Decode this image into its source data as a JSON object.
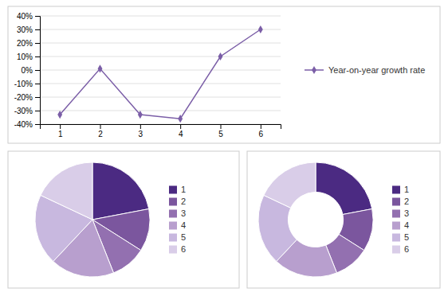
{
  "chart_data": [
    {
      "type": "line",
      "x": [
        1,
        2,
        3,
        4,
        5,
        6
      ],
      "series": [
        {
          "name": "Year-on-year growth rate",
          "color": "#7B5EA7",
          "marker": "diamond",
          "values": [
            -0.33,
            0.01,
            -0.33,
            -0.36,
            0.1,
            0.3
          ]
        }
      ],
      "xlim": [
        0.5,
        6.5
      ],
      "xticks": [
        1,
        2,
        3,
        4,
        5,
        6
      ],
      "ylim": [
        -0.4,
        0.4
      ],
      "yticks": [
        {
          "value": -0.4,
          "label": "-40%"
        },
        {
          "value": -0.3,
          "label": "-30%"
        },
        {
          "value": -0.2,
          "label": "-20%"
        },
        {
          "value": -0.1,
          "label": "-10%"
        },
        {
          "value": 0.0,
          "label": "0%"
        },
        {
          "value": 0.1,
          "label": "10%"
        },
        {
          "value": 0.2,
          "label": "20%"
        },
        {
          "value": 0.3,
          "label": "30%"
        },
        {
          "value": 0.4,
          "label": "40%"
        }
      ],
      "grid": true,
      "legend": "right"
    },
    {
      "type": "pie",
      "categories": [
        "1",
        "2",
        "3",
        "4",
        "5",
        "6"
      ],
      "values": [
        22,
        12,
        10,
        18,
        20,
        18
      ],
      "colors": [
        "#4B2A82",
        "#7B569E",
        "#9370B0",
        "#B89FCE",
        "#C8B8DF",
        "#D9CDE8"
      ],
      "legend": "right"
    },
    {
      "type": "donut",
      "categories": [
        "1",
        "2",
        "3",
        "4",
        "5",
        "6"
      ],
      "values": [
        22,
        12,
        10,
        18,
        20,
        18
      ],
      "colors": [
        "#4B2A82",
        "#7B569E",
        "#9370B0",
        "#B89FCE",
        "#C8B8DF",
        "#D9CDE8"
      ],
      "legend": "right"
    }
  ]
}
